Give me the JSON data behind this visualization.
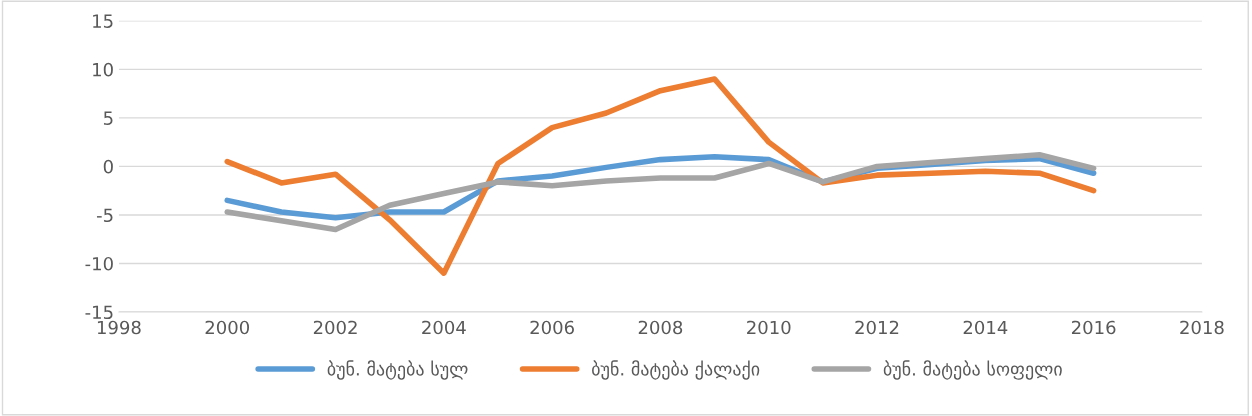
{
  "chart_data": {
    "type": "line",
    "x": [
      2000,
      2001,
      2002,
      2003,
      2004,
      2005,
      2006,
      2007,
      2008,
      2009,
      2010,
      2011,
      2012,
      2013,
      2014,
      2015,
      2016
    ],
    "series": [
      {
        "name": "ბუნ. მატება სულ",
        "color": "#5b9bd5",
        "values": [
          -3.5,
          -4.7,
          -5.3,
          -4.7,
          -4.7,
          -1.5,
          -1.0,
          -0.1,
          0.7,
          1.0,
          0.7,
          -1.6,
          -0.2,
          0.2,
          0.6,
          0.8,
          -0.7
        ]
      },
      {
        "name": "ბუნ. მატება ქალაქი",
        "color": "#ed7d31",
        "values": [
          0.5,
          -1.7,
          -0.8,
          -5.5,
          -11.0,
          0.3,
          4.0,
          5.5,
          7.8,
          9.0,
          2.5,
          -1.7,
          -0.9,
          -0.7,
          -0.5,
          -0.7,
          -2.5
        ]
      },
      {
        "name": "ბუნ. მატება სოფელი",
        "color": "#a5a5a5",
        "values": [
          -4.7,
          -5.6,
          -6.5,
          -4.0,
          -2.8,
          -1.6,
          -2.0,
          -1.5,
          -1.2,
          -1.2,
          0.3,
          -1.6,
          0.0,
          0.4,
          0.8,
          1.2,
          -0.2
        ]
      }
    ],
    "xlim": [
      1998,
      2018
    ],
    "xticks": [
      1998,
      2000,
      2002,
      2004,
      2006,
      2008,
      2010,
      2012,
      2014,
      2016,
      2018
    ],
    "ylim": [
      -15,
      15
    ],
    "yticks": [
      -15,
      -10,
      -5,
      0,
      5,
      10,
      15
    ],
    "grid": "y",
    "legend": "bottom",
    "marker": "none",
    "line_style": "solid"
  }
}
